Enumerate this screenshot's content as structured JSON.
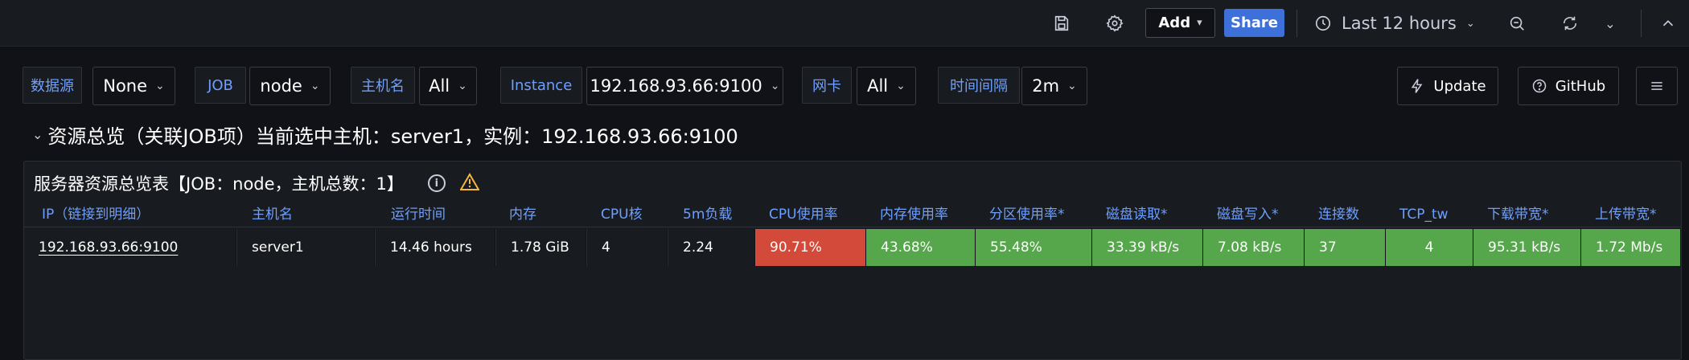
{
  "toolbar": {
    "add_label": "Add",
    "share_label": "Share",
    "time_range": "Last 12 hours"
  },
  "variables": [
    {
      "label": "数据源",
      "value": "None"
    },
    {
      "label": "JOB",
      "value": "node"
    },
    {
      "label": "主机名",
      "value": "All"
    },
    {
      "label": "Instance",
      "value": "192.168.93.66:9100"
    },
    {
      "label": "网卡",
      "value": "All"
    },
    {
      "label": "时间间隔",
      "value": "2m"
    }
  ],
  "actions": {
    "update_label": "Update",
    "github_label": "GitHub"
  },
  "row": {
    "title": "资源总览（关联JOB项）当前选中主机：server1，实例：192.168.93.66:9100"
  },
  "panel": {
    "title": "服务器资源总览表【JOB：node，主机总数：1】",
    "columns": [
      "IP（链接到明细）",
      "主机名",
      "运行时间",
      "内存",
      "CPU核",
      "5m负载",
      "CPU使用率",
      "内存使用率",
      "分区使用率*",
      "磁盘读取*",
      "磁盘写入*",
      "连接数",
      "TCP_tw",
      "下载带宽*",
      "上传带宽*"
    ],
    "rows": [
      {
        "ip": "192.168.93.66:9100",
        "hostname": "server1",
        "uptime": "14.46 hours",
        "memory": "1.78 GiB",
        "cpu_cores": "4",
        "load5": "2.24",
        "cpu_usage": "90.71%",
        "mem_usage": "43.68%",
        "partition_usage": "55.48%",
        "disk_read": "33.39 kB/s",
        "disk_write": "7.08 kB/s",
        "connections": "37",
        "tcp_tw": "4",
        "download": "95.31 kB/s",
        "upload": "1.72 Mb/s"
      }
    ]
  },
  "colors": {
    "background": "#111217",
    "panel": "#181b1f",
    "accent_blue": "#6e9fff",
    "share_blue": "#3d71d9",
    "status_red": "#d44a3a",
    "status_green": "#56a64b",
    "warning": "#f5b73d"
  },
  "icons": [
    "save-icon",
    "gear-icon",
    "clock-icon",
    "zoom-out-icon",
    "refresh-icon",
    "chevron-up-icon",
    "bolt-icon",
    "help-circle-icon",
    "menu-icon",
    "info-icon",
    "warning-icon"
  ]
}
